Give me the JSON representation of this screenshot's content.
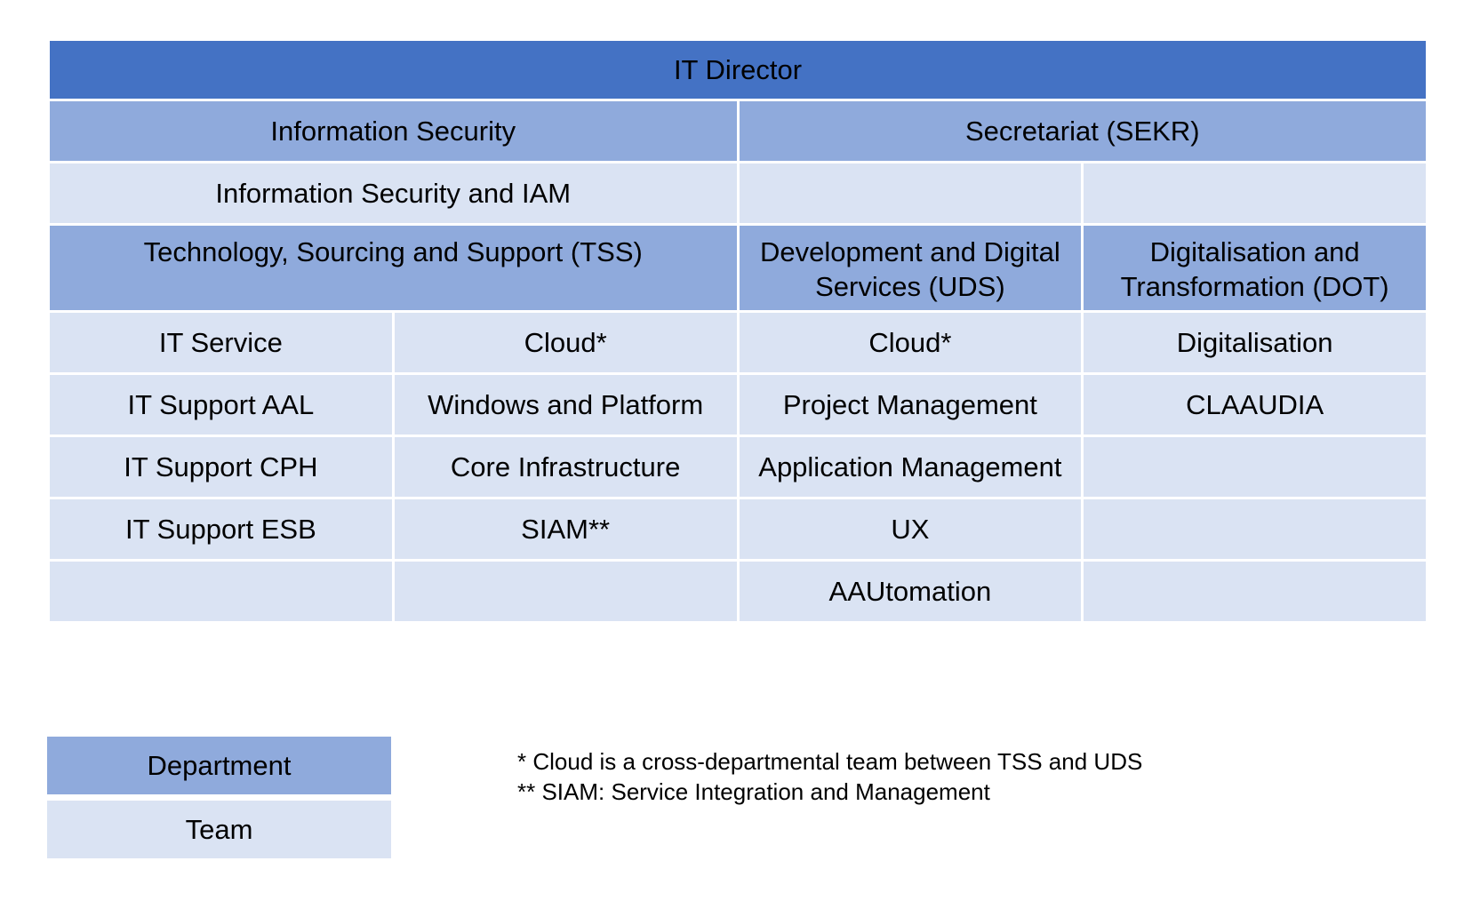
{
  "director": "IT Director",
  "info_security": {
    "department": "Information Security",
    "team": "Information Security and IAM"
  },
  "secretariat": {
    "department": "Secretariat (SEKR)"
  },
  "tss": {
    "department": "Technology, Sourcing and Support (TSS)",
    "col1_teams": [
      "IT Service",
      "IT Support AAL",
      "IT Support CPH",
      "IT Support ESB"
    ],
    "col2_teams": [
      "Cloud*",
      "Windows and Platform",
      "Core Infrastructure",
      "SIAM**"
    ]
  },
  "uds": {
    "department": "Development and Digital Services (UDS)",
    "teams": [
      "Cloud*",
      "Project Management",
      "Application Management",
      "UX",
      "AAUtomation"
    ]
  },
  "dot": {
    "department": "Digitalisation and Transformation (DOT)",
    "teams": [
      "Digitalisation",
      "CLAAUDIA"
    ]
  },
  "legend": {
    "department_label": "Department",
    "team_label": "Team"
  },
  "footnotes": [
    "* Cloud is a cross-departmental team between TSS and UDS",
    "** SIAM: Service Integration and Management"
  ],
  "colors": {
    "director": "#4472c4",
    "department": "#8faadc",
    "team": "#dae3f3"
  }
}
